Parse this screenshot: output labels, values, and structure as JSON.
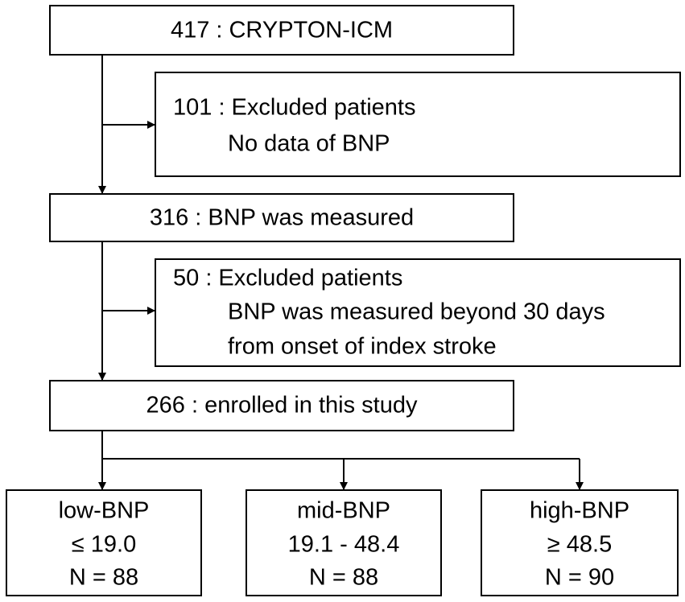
{
  "nodes": [
    {
      "lines": [
        "417 : CRYPTON-ICM"
      ]
    },
    {
      "lines": [
        "101 : Excluded patients",
        "No data of BNP"
      ]
    },
    {
      "lines": [
        "316 : BNP was measured"
      ]
    },
    {
      "lines": [
        "50 : Excluded patients",
        "BNP was measured beyond 30 days",
        "from onset of index stroke"
      ]
    },
    {
      "lines": [
        "266 : enrolled in this study"
      ]
    },
    {
      "lines": [
        "low-BNP",
        "≤ 19.0",
        "N = 88"
      ]
    },
    {
      "lines": [
        "mid-BNP",
        "19.1 - 48.4",
        "N = 88"
      ]
    },
    {
      "lines": [
        "high-BNP",
        "≥ 48.5",
        "N = 90"
      ]
    }
  ]
}
